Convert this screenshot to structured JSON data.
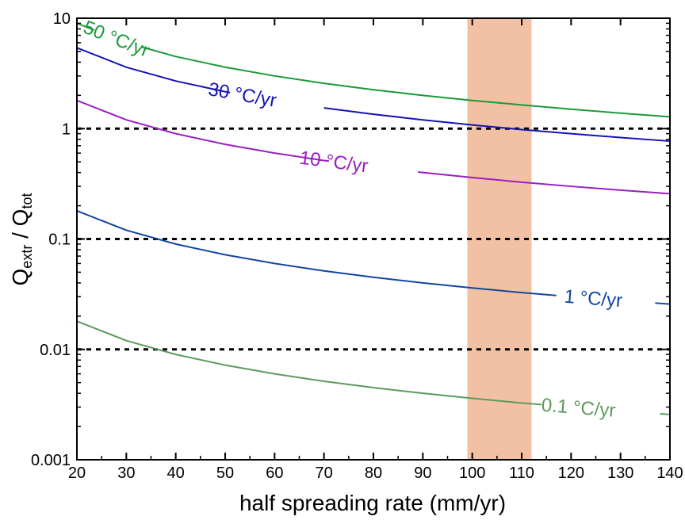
{
  "chart_data": {
    "type": "line",
    "xlabel": "half spreading rate (mm/yr)",
    "ylabel": {
      "q1": "Q",
      "sub1": "extr",
      "sep": " / ",
      "q2": "Q",
      "sub2": "tot"
    },
    "xlim": [
      20,
      140
    ],
    "ylim": [
      0.001,
      10
    ],
    "yscale": "log",
    "x_ticks": [
      "20",
      "30",
      "40",
      "50",
      "60",
      "70",
      "80",
      "90",
      "100",
      "110",
      "120",
      "130",
      "140"
    ],
    "y_ticks": [
      "0.001",
      "0.01",
      "0.1",
      "1",
      "10"
    ],
    "reference_lines": [
      0.01,
      0.1,
      1
    ],
    "shaded_band": {
      "x_start": 99,
      "x_end": 112,
      "color": "#f2c1a3"
    },
    "x": [
      20,
      30,
      40,
      50,
      60,
      70,
      80,
      90,
      100,
      110,
      120,
      130,
      140
    ],
    "series": [
      {
        "name": "50 °C/yr",
        "color": "#1a9a3a",
        "values": [
          9.0,
          6.0,
          4.5,
          3.6,
          3.0,
          2.57,
          2.25,
          2.0,
          1.8,
          1.64,
          1.5,
          1.38,
          1.28
        ],
        "label_x": 28,
        "gap": [
          23.5,
          33
        ]
      },
      {
        "name": "30 °C/yr",
        "color": "#1414b4",
        "values": [
          5.4,
          3.6,
          2.7,
          2.16,
          1.8,
          1.54,
          1.35,
          1.2,
          1.08,
          0.98,
          0.9,
          0.83,
          0.77
        ],
        "label_x": 53.5,
        "gap": [
          51,
          70
        ]
      },
      {
        "name": "10 °C/yr",
        "color": "#9a1fc2",
        "values": [
          1.8,
          1.2,
          0.9,
          0.72,
          0.6,
          0.514,
          0.45,
          0.4,
          0.36,
          0.327,
          0.3,
          0.277,
          0.257
        ],
        "label_x": 72,
        "gap": [
          71,
          89
        ]
      },
      {
        "name": "1 °C/yr",
        "color": "#1446a0",
        "values": [
          0.18,
          0.12,
          0.09,
          0.072,
          0.06,
          0.0514,
          0.045,
          0.04,
          0.036,
          0.0327,
          0.03,
          0.0277,
          0.0257
        ],
        "label_x": 124.5,
        "gap": [
          117,
          137
        ]
      },
      {
        "name": "0.1 °C/yr",
        "color": "#5e9a5e",
        "values": [
          0.018,
          0.012,
          0.009,
          0.0072,
          0.006,
          0.00514,
          0.0045,
          0.004,
          0.0036,
          0.00327,
          0.003,
          0.00277,
          0.00257
        ],
        "label_x": 121.5,
        "gap": [
          114,
          138
        ]
      }
    ]
  }
}
